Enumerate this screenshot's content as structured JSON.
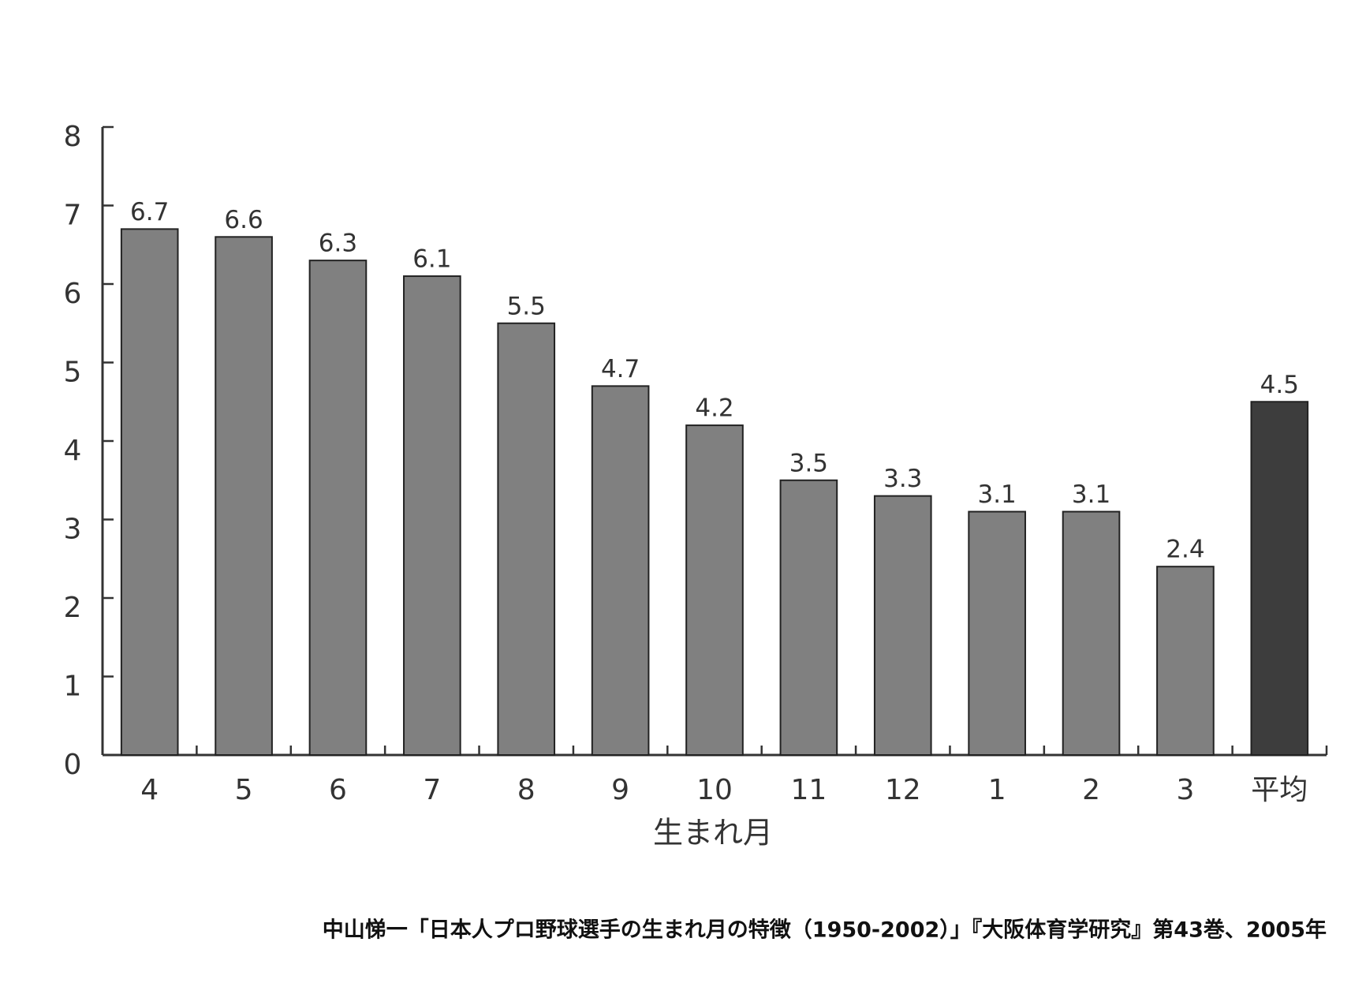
{
  "chart_data": {
    "type": "bar",
    "categories": [
      "4",
      "5",
      "6",
      "7",
      "8",
      "9",
      "10",
      "11",
      "12",
      "1",
      "2",
      "3",
      "平均"
    ],
    "values": [
      6.7,
      6.6,
      6.3,
      6.1,
      5.5,
      4.7,
      4.2,
      3.5,
      3.3,
      3.1,
      3.1,
      2.4,
      4.5
    ],
    "colors": [
      "#808080",
      "#808080",
      "#808080",
      "#808080",
      "#808080",
      "#808080",
      "#808080",
      "#808080",
      "#808080",
      "#808080",
      "#808080",
      "#808080",
      "#3d3d3d"
    ],
    "x_label": "生まれ月",
    "ylim": [
      0,
      8
    ],
    "yticks": [
      0,
      1,
      2,
      3,
      4,
      5,
      6,
      7,
      8
    ],
    "grid": false,
    "source": "中山悌一「日本人プロ野球選手の生まれ月の特徴（1950-2002）」『大阪体育学研究』第43巻、2005年"
  }
}
